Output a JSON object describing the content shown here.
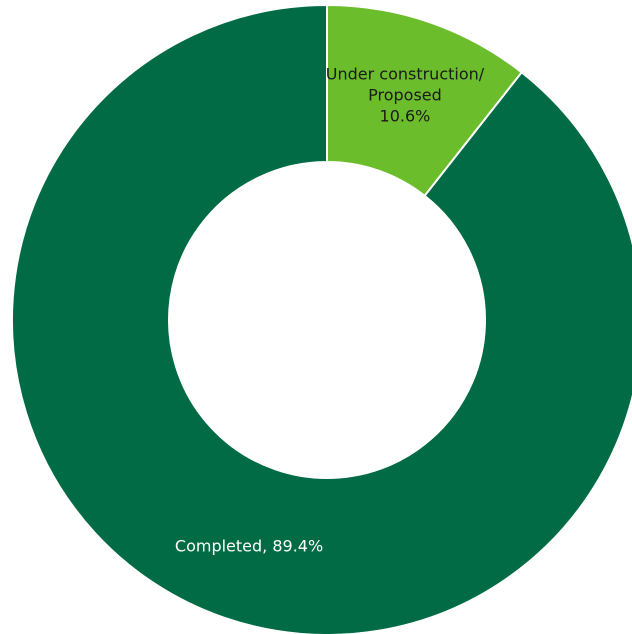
{
  "chart_data": {
    "type": "pie",
    "title": "",
    "slices": [
      {
        "label": "Completed",
        "value": 89.4,
        "label_lines": [
          "Completed,  89.4%"
        ],
        "color": "#006b45",
        "text_color": "#ffffff"
      },
      {
        "label": "Under construction/ Proposed",
        "value": 10.6,
        "label_lines": [
          "Under construction/",
          "Proposed",
          "10.6%"
        ],
        "color": "#6cbd2c",
        "text_color": "#1a1a1a"
      }
    ],
    "legend": "none",
    "donut": true,
    "start": "top",
    "direction": "counterclockwise"
  }
}
